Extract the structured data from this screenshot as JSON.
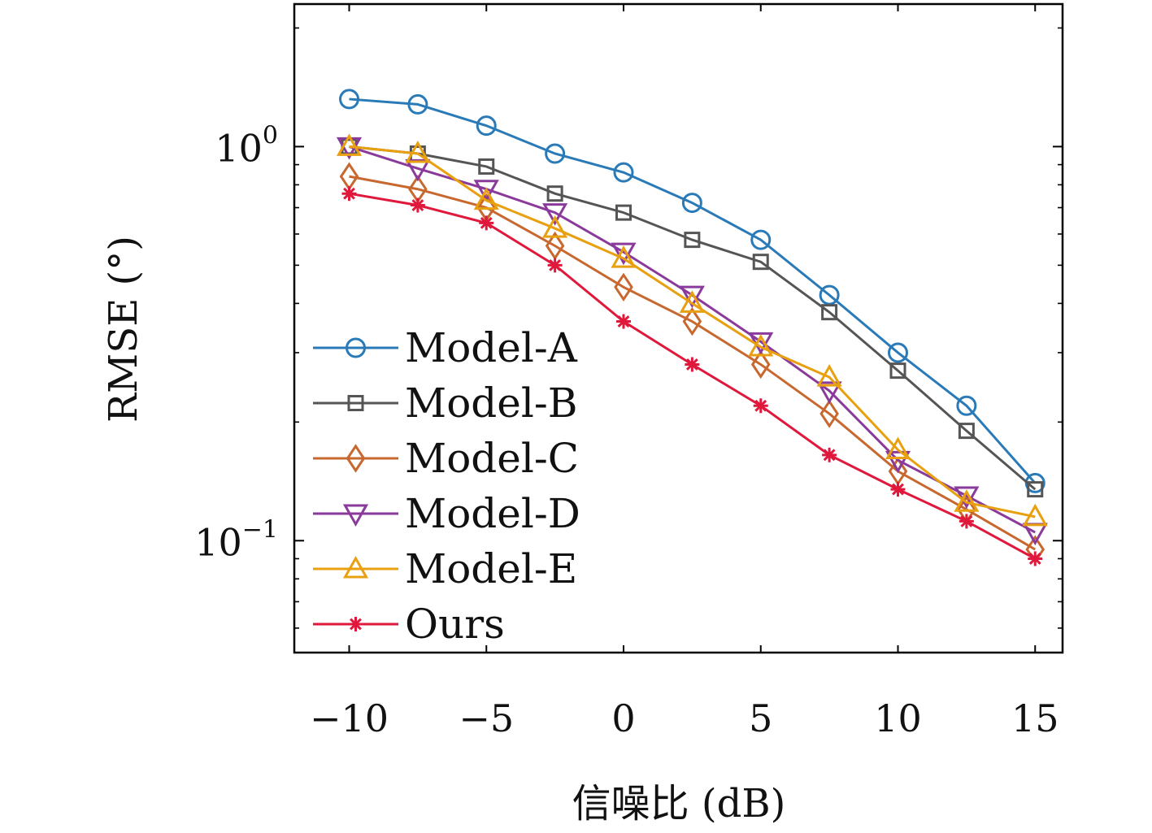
{
  "chart_data": {
    "type": "line",
    "xlabel": "信噪比 (dB)",
    "ylabel": "RMSE (°)",
    "yscale": "log",
    "xlim": [
      -12,
      16
    ],
    "ylim": [
      0.052,
      2.3
    ],
    "grid": false,
    "legend_position": "lower-left",
    "x": [
      -10,
      -7.5,
      -5,
      -2.5,
      0,
      2.5,
      5,
      7.5,
      10,
      12.5,
      15
    ],
    "xticks": [
      -10,
      -5,
      0,
      5,
      10,
      15
    ],
    "xtick_labels": [
      "−10",
      "−5",
      "0",
      "5",
      "10",
      "15"
    ],
    "yticks": [
      {
        "value": 1,
        "base": "10",
        "exp": "0"
      },
      {
        "value": 0.1,
        "base": "10",
        "exp": "−1"
      }
    ],
    "series": [
      {
        "name": "Model-A",
        "color": "#2a7ab8",
        "marker": "circle",
        "values": [
          1.32,
          1.28,
          1.13,
          0.96,
          0.86,
          0.72,
          0.58,
          0.42,
          0.3,
          0.22,
          0.14
        ]
      },
      {
        "name": "Model-B",
        "color": "#555555",
        "marker": "square",
        "values": [
          1.0,
          0.96,
          0.89,
          0.76,
          0.68,
          0.58,
          0.51,
          0.38,
          0.27,
          0.19,
          0.135
        ]
      },
      {
        "name": "Model-C",
        "color": "#c8682e",
        "marker": "diamond",
        "values": [
          0.84,
          0.78,
          0.7,
          0.56,
          0.44,
          0.36,
          0.28,
          0.21,
          0.15,
          0.12,
          0.095
        ]
      },
      {
        "name": "Model-D",
        "color": "#8a3a9a",
        "marker": "triangle-down",
        "values": [
          1.0,
          0.88,
          0.78,
          0.68,
          0.54,
          0.42,
          0.32,
          0.24,
          0.16,
          0.13,
          0.105
        ]
      },
      {
        "name": "Model-E",
        "color": "#e8a010",
        "marker": "triangle-up",
        "values": [
          1.0,
          0.96,
          0.73,
          0.62,
          0.52,
          0.4,
          0.31,
          0.26,
          0.17,
          0.125,
          0.115
        ]
      },
      {
        "name": "Ours",
        "color": "#e0183c",
        "marker": "star",
        "values": [
          0.76,
          0.71,
          0.64,
          0.5,
          0.36,
          0.28,
          0.22,
          0.165,
          0.135,
          0.112,
          0.09
        ]
      }
    ]
  }
}
